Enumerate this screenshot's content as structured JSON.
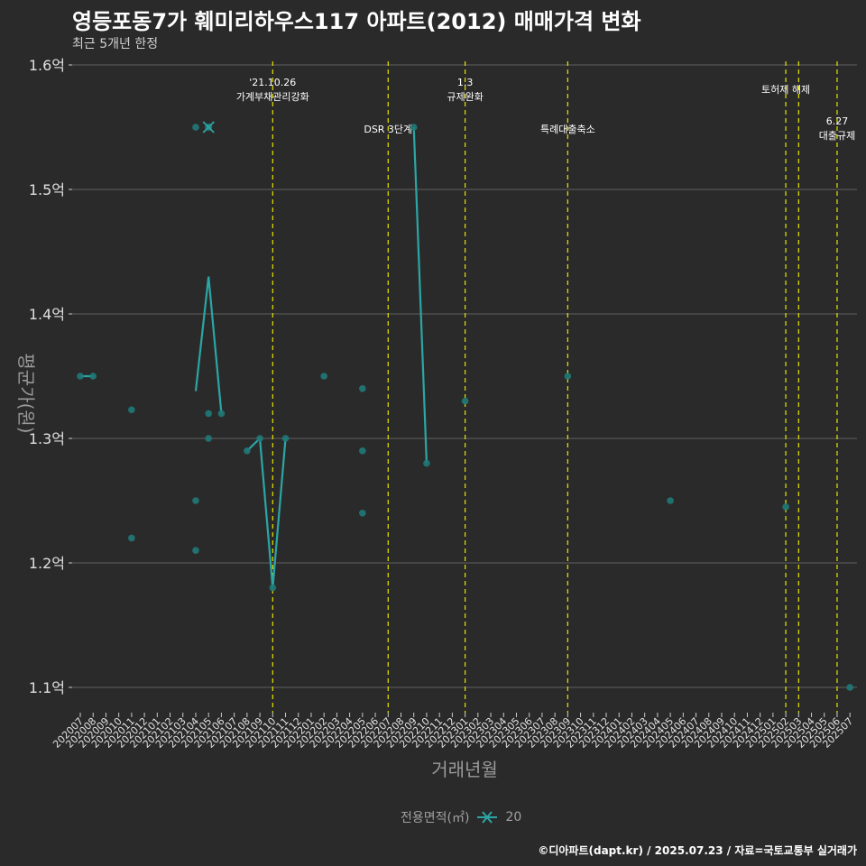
{
  "title": "영등포동7가 훼미리하우스117 아파트(2012) 매매가격 변화",
  "subtitle": "최근 5개년 한정",
  "credit": "©디아파트(dapt.kr) / 2025.07.23 / 자료=국토교통부 실거래가",
  "legend": {
    "title": "전용면적(㎡)",
    "item": "20"
  },
  "colors": {
    "background": "#2a2a2b",
    "series": "#2ca6a4",
    "point": "#1f7a78",
    "event_line": "#e5e500",
    "grid": "#606060"
  },
  "chart_data": {
    "type": "line",
    "xlabel": "거래년월",
    "ylabel": "평균가(원)",
    "ylim": [
      1.08,
      1.6
    ],
    "y_ticks": [
      {
        "value": 1.1,
        "label": "1.1억"
      },
      {
        "value": 1.2,
        "label": "1.2억"
      },
      {
        "value": 1.3,
        "label": "1.3억"
      },
      {
        "value": 1.4,
        "label": "1.4억"
      },
      {
        "value": 1.5,
        "label": "1.5억"
      },
      {
        "value": 1.6,
        "label": "1.6억"
      }
    ],
    "x_categories": [
      "202007",
      "202008",
      "202009",
      "202010",
      "202011",
      "202012",
      "202101",
      "202102",
      "202103",
      "202104",
      "202105",
      "202106",
      "202107",
      "202108",
      "202109",
      "202110",
      "202111",
      "202112",
      "202201",
      "202202",
      "202203",
      "202204",
      "202205",
      "202206",
      "202207",
      "202208",
      "202209",
      "202210",
      "202211",
      "202212",
      "202301",
      "202302",
      "202303",
      "202304",
      "202305",
      "202306",
      "202307",
      "202308",
      "202309",
      "202310",
      "202311",
      "202312",
      "202401",
      "202402",
      "202403",
      "202404",
      "202405",
      "202406",
      "202407",
      "202408",
      "202409",
      "202410",
      "202411",
      "202412",
      "202501",
      "202502",
      "202503",
      "202504",
      "202505",
      "202506",
      "202507"
    ],
    "series": [
      {
        "name": "20",
        "line_segments": [
          [
            [
              "202007",
              1.35
            ],
            [
              "202008",
              1.35
            ]
          ],
          [
            [
              "202104",
              1.338
            ],
            [
              "202105",
              1.43
            ],
            [
              "202106",
              1.32
            ]
          ],
          [
            [
              "202109",
              1.3
            ],
            [
              "202110",
              1.18
            ],
            [
              "202111",
              1.3
            ]
          ],
          [
            [
              "202108",
              1.29
            ],
            [
              "202109",
              1.3
            ]
          ],
          [
            [
              "202209",
              1.55
            ],
            [
              "202210",
              1.28
            ]
          ]
        ],
        "points": [
          [
            "202007",
            1.35
          ],
          [
            "202008",
            1.35
          ],
          [
            "202011",
            1.323
          ],
          [
            "202011",
            1.22
          ],
          [
            "202104",
            1.55
          ],
          [
            "202104",
            1.25
          ],
          [
            "202104",
            1.21
          ],
          [
            "202105",
            1.55
          ],
          [
            "202105",
            1.32
          ],
          [
            "202105",
            1.3
          ],
          [
            "202106",
            1.32
          ],
          [
            "202108",
            1.29
          ],
          [
            "202109",
            1.3
          ],
          [
            "202110",
            1.18
          ],
          [
            "202111",
            1.3
          ],
          [
            "202202",
            1.35
          ],
          [
            "202205",
            1.34
          ],
          [
            "202205",
            1.29
          ],
          [
            "202205",
            1.24
          ],
          [
            "202209",
            1.55
          ],
          [
            "202210",
            1.28
          ],
          [
            "202301",
            1.33
          ],
          [
            "202309",
            1.35
          ],
          [
            "202405",
            1.25
          ],
          [
            "202502",
            1.245
          ],
          [
            "202507",
            1.1
          ]
        ],
        "highlight": [
          "202105",
          1.55
        ]
      }
    ],
    "events": [
      {
        "x": "202110",
        "label": "'21.10.26\n가계부채관리강화",
        "level": 1
      },
      {
        "x": "202207",
        "label": "DSR 3단계",
        "level": 3
      },
      {
        "x": "202301",
        "label": "1.3\n규제완화",
        "level": 1
      },
      {
        "x": "202309",
        "label": "특례대출축소",
        "level": 3
      },
      {
        "x": "202502",
        "label": "토허제 해제",
        "level": 2
      },
      {
        "x": "202503",
        "label": "",
        "level": 0
      },
      {
        "x": "202506",
        "label": "6.27\n대출규제",
        "level": 4
      }
    ]
  }
}
